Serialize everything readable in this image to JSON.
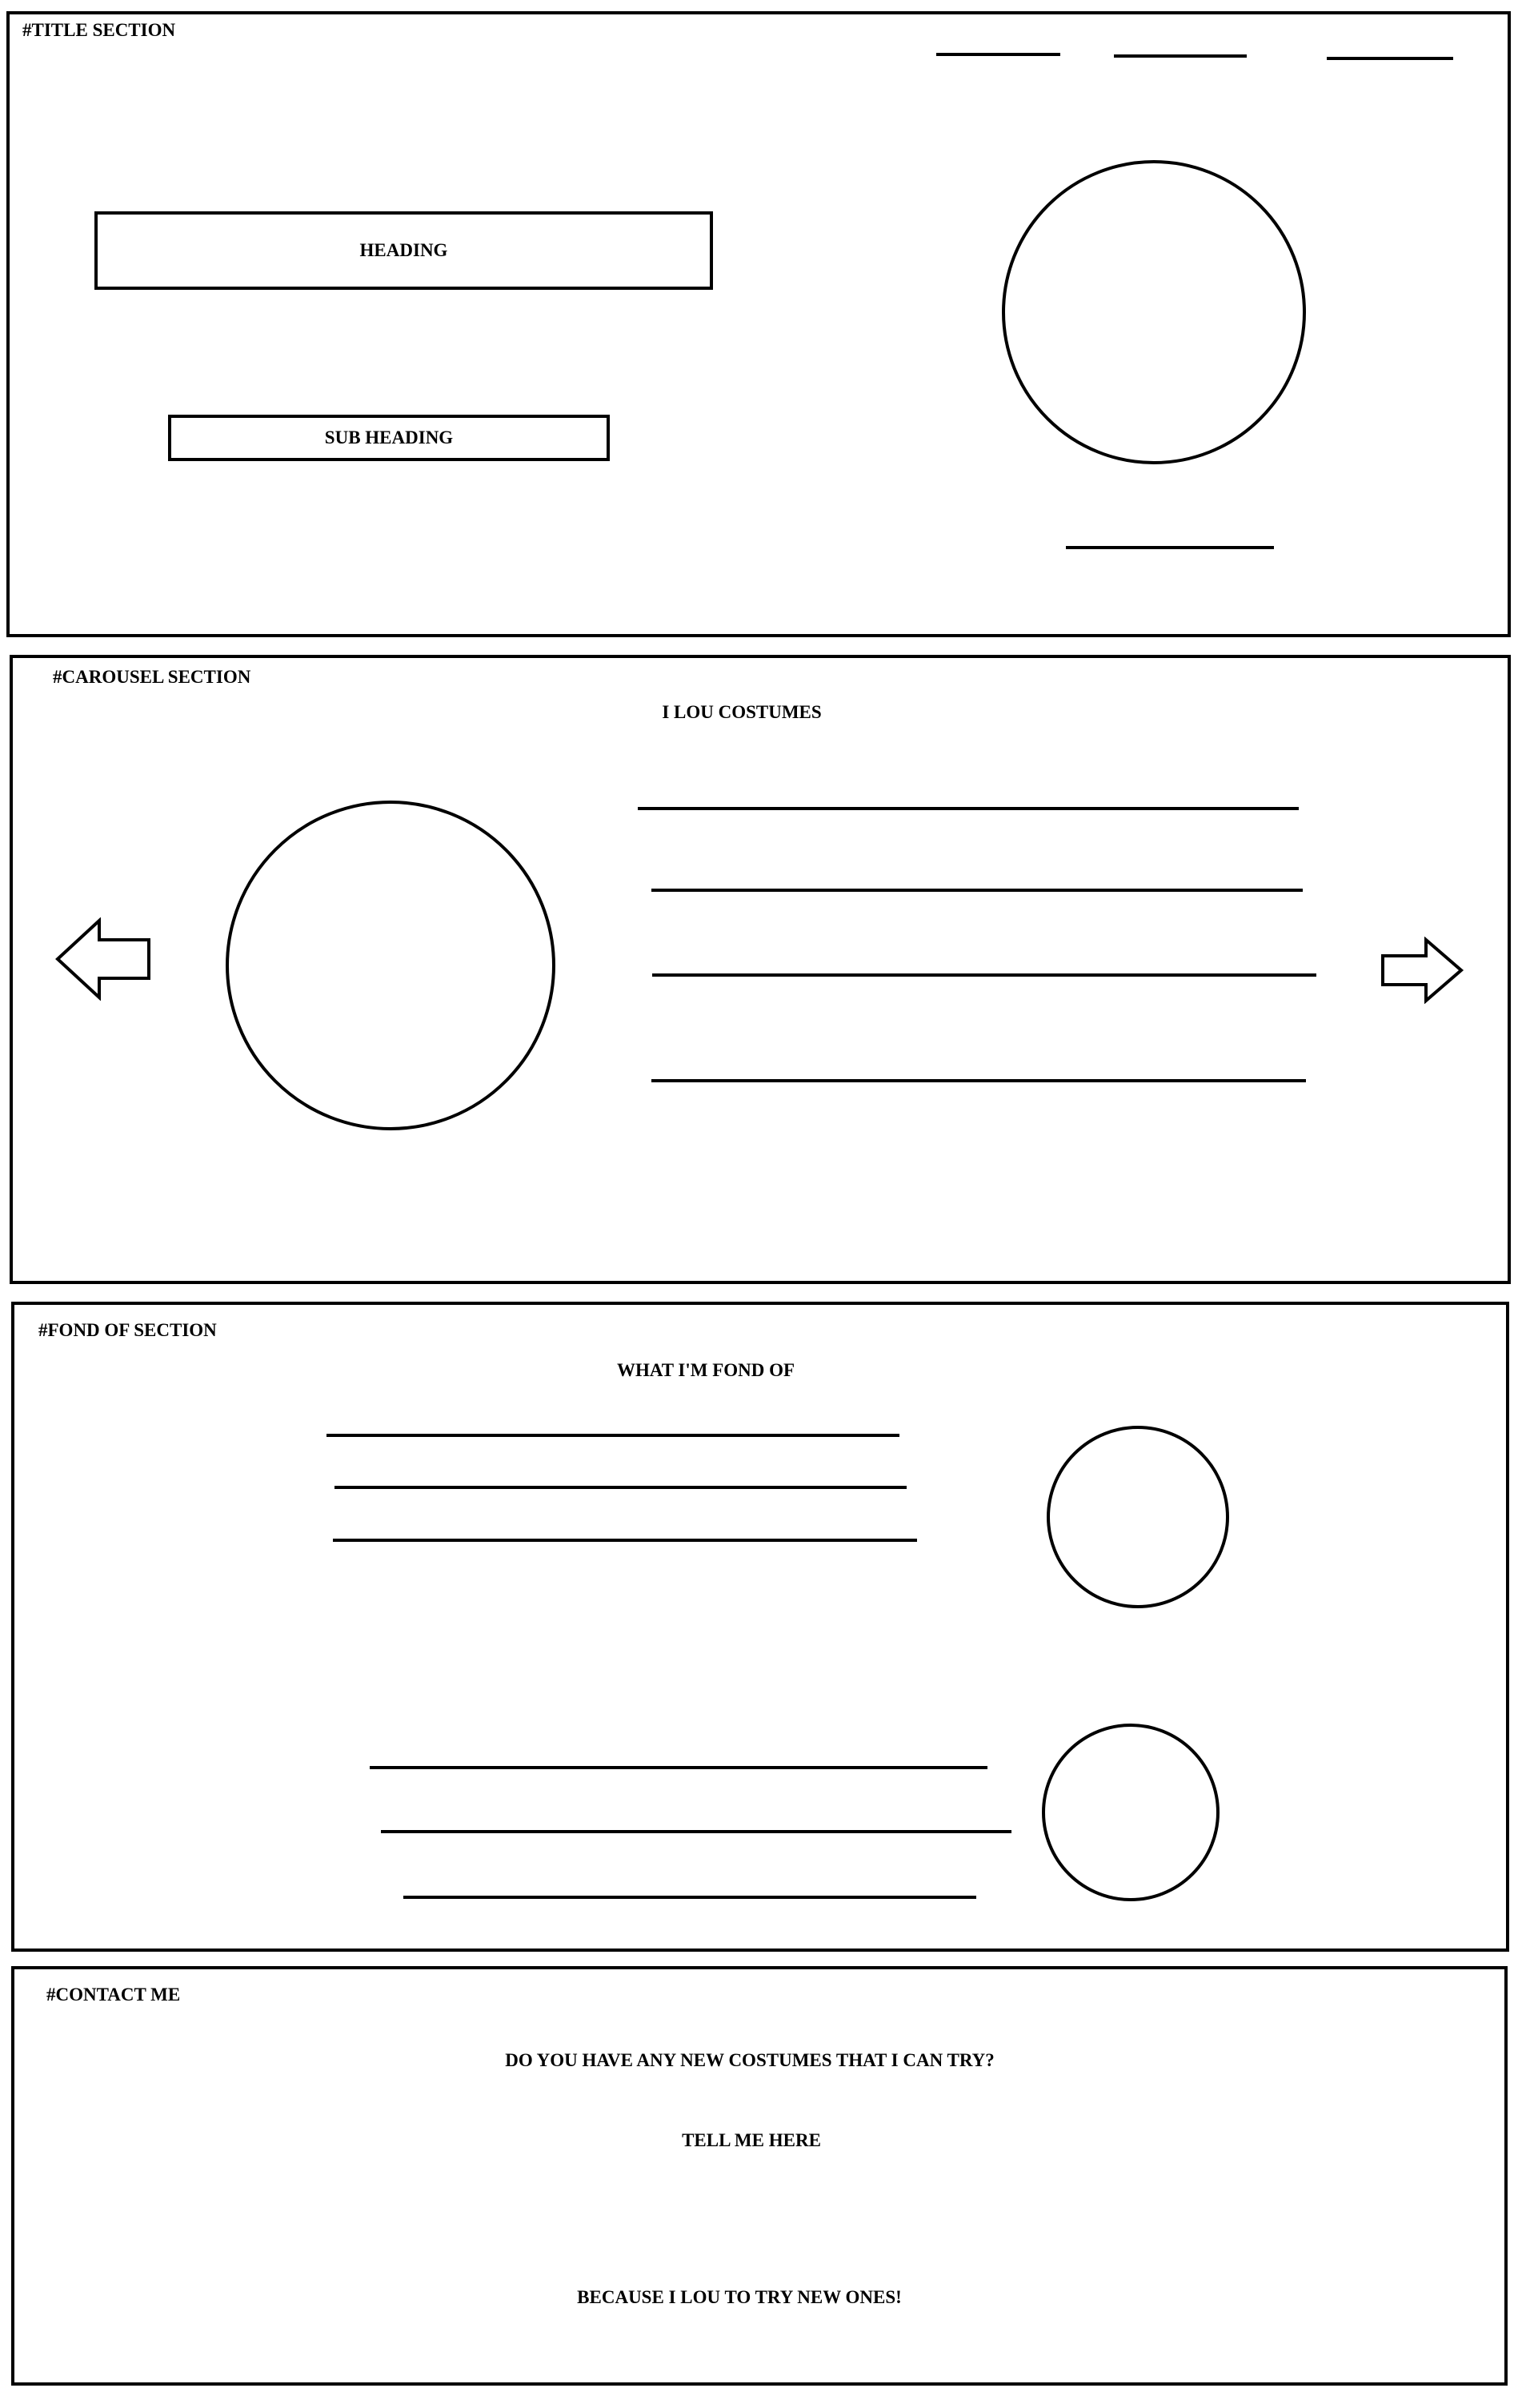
{
  "title_section": {
    "label": "#TITLE SECTION",
    "heading": "HEADING",
    "sub_heading": "SUB HEADING"
  },
  "carousel_section": {
    "label": "#CAROUSEL SECTION",
    "title": "I LOU COSTUMES",
    "prev_icon": "left-arrow-icon",
    "next_icon": "right-arrow-icon"
  },
  "fond_section": {
    "label": "#FOND OF SECTION",
    "title": "WHAT I'M FOND OF"
  },
  "contact_section": {
    "label": "#CONTACT ME",
    "question": "DO YOU HAVE ANY NEW COSTUMES THAT I CAN TRY?",
    "cta": "TELL ME HERE",
    "closing": "BECAUSE I LOU TO TRY NEW ONES!"
  }
}
